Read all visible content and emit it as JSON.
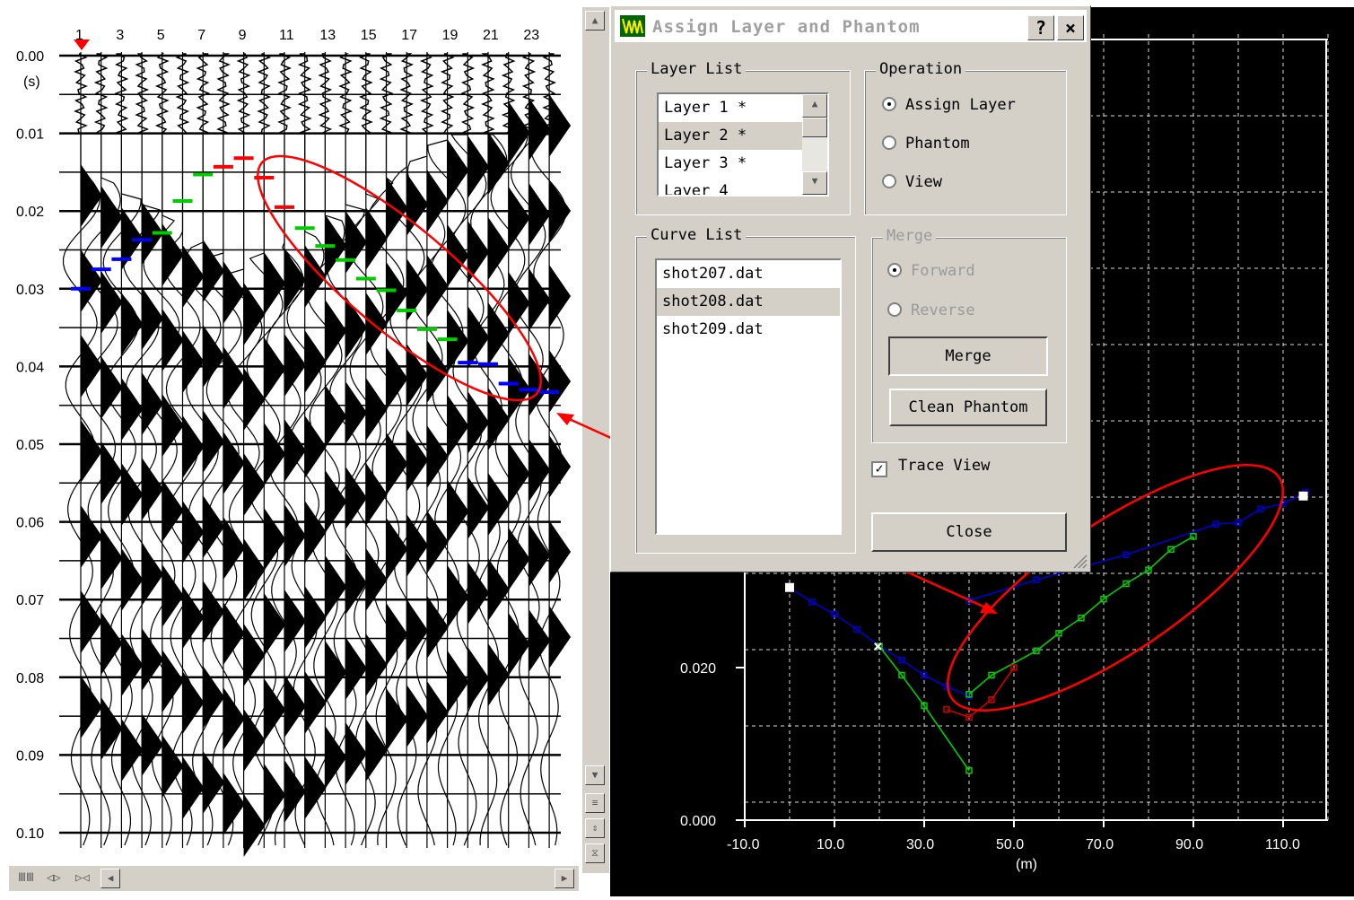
{
  "seismogram": {
    "trace_labels": [
      "1",
      "3",
      "5",
      "7",
      "9",
      "11",
      "13",
      "15",
      "17",
      "19",
      "21",
      "23"
    ],
    "time_labels": [
      "0.00",
      "0.01",
      "0.02",
      "0.03",
      "0.04",
      "0.05",
      "0.06",
      "0.07",
      "0.08",
      "0.09",
      "0.10"
    ],
    "time_unit": "(s)",
    "pick_colors": {
      "layer1": "#0000ff",
      "layer2": "#00cc00",
      "layer3": "#ff0000"
    }
  },
  "dialog": {
    "title": "Assign Layer and Phantom",
    "help_button": "?",
    "close_button": "×",
    "layer_list": {
      "label": "Layer List",
      "items": [
        "Layer 1 *",
        "Layer 2 *",
        "Layer 3 *",
        "Layer 4"
      ],
      "selected_index": 1
    },
    "operation": {
      "label": "Operation",
      "options": [
        "Assign Layer",
        "Phantom",
        "View"
      ],
      "selected_index": 0
    },
    "curve_list": {
      "label": "Curve List",
      "items": [
        "shot207.dat",
        "shot208.dat",
        "shot209.dat"
      ],
      "selected_index": 1
    },
    "merge": {
      "label": "Merge",
      "options": [
        "Forward",
        "Reverse"
      ],
      "selected_index": 0,
      "merge_button": "Merge",
      "clean_button": "Clean Phantom"
    },
    "trace_view": {
      "label": "Trace View",
      "checked": true
    },
    "close": "Close"
  },
  "plot": {
    "y_ticks": [
      "0.020",
      "0.000"
    ],
    "x_ticks": [
      "-10.0",
      "10.0",
      "30.0",
      "50.0",
      "70.0",
      "90.0",
      "110.0"
    ],
    "x_unit": "(m)",
    "colors": {
      "layer1": "#0000cc",
      "layer2": "#00cc00",
      "layer3": "#cc0000",
      "annotation": "#ff0000"
    }
  }
}
